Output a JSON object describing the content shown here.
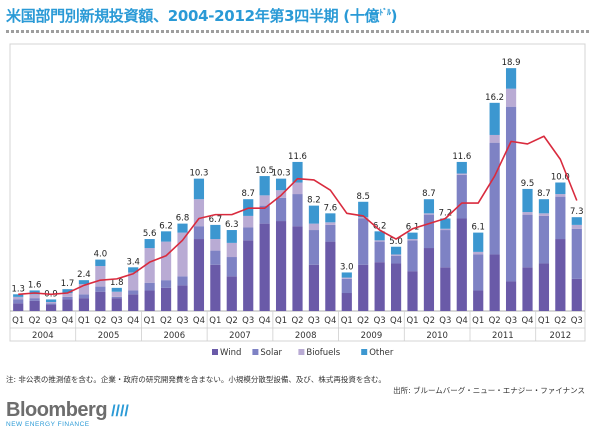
{
  "page": {
    "title": "米国部門別新規投資額、2004-2012年第3四半期 (十億",
    "title_unit_sup": "ﾄﾞﾙ",
    "title_close": ")",
    "note": "注: 非公表の推測値を含む。企業・政府の研究開発費を含まない。小規模分散型設備、及び、株式再投資を含む。",
    "source": "出所: ブルームバーグ・ニュー・エナジー・ファイナンス",
    "brand": {
      "name": "Bloomberg",
      "slashes": "////",
      "tagline": "NEW ENERGY FINANCE"
    }
  },
  "chart_data": {
    "type": "bar",
    "stacked": true,
    "categories": [
      "Q1",
      "Q2",
      "Q3",
      "Q4",
      "Q1",
      "Q2",
      "Q3",
      "Q4",
      "Q1",
      "Q2",
      "Q3",
      "Q4",
      "Q1",
      "Q2",
      "Q3",
      "Q4",
      "Q1",
      "Q2",
      "Q3",
      "Q4",
      "Q1",
      "Q2",
      "Q3",
      "Q4",
      "Q1",
      "Q2",
      "Q3",
      "Q4",
      "Q1",
      "Q2",
      "Q3",
      "Q4",
      "Q1",
      "Q2",
      "Q3"
    ],
    "year_groups": [
      {
        "label": "2004",
        "count": 4
      },
      {
        "label": "2005",
        "count": 4
      },
      {
        "label": "2006",
        "count": 4
      },
      {
        "label": "2007",
        "count": 4
      },
      {
        "label": "2008",
        "count": 4
      },
      {
        "label": "2009",
        "count": 4
      },
      {
        "label": "2010",
        "count": 4
      },
      {
        "label": "2011",
        "count": 4
      },
      {
        "label": "2012",
        "count": 3
      }
    ],
    "totals": [
      1.3,
      1.6,
      0.9,
      1.7,
      2.4,
      4.0,
      1.8,
      3.4,
      5.6,
      6.2,
      6.8,
      10.3,
      6.7,
      6.3,
      8.7,
      10.5,
      10.3,
      11.6,
      8.2,
      7.6,
      3.0,
      8.5,
      6.2,
      5.0,
      6.1,
      8.7,
      7.2,
      11.6,
      6.1,
      16.2,
      18.9,
      9.5,
      8.7,
      10.0,
      7.3
    ],
    "series": [
      {
        "name": "Wind",
        "color": "#6a5aa8",
        "values": [
          0.6,
          0.8,
          0.5,
          0.9,
          1.0,
          1.5,
          1.0,
          1.3,
          1.6,
          1.8,
          2.0,
          5.6,
          3.6,
          2.7,
          5.5,
          6.8,
          7.0,
          6.6,
          3.6,
          5.4,
          1.4,
          3.6,
          3.8,
          3.7,
          3.1,
          4.9,
          3.4,
          7.2,
          1.6,
          4.4,
          2.3,
          3.4,
          3.7,
          5.6,
          2.5
        ]
      },
      {
        "name": "Solar",
        "color": "#7e82c4",
        "values": [
          0.3,
          0.2,
          0.1,
          0.2,
          0.3,
          0.4,
          0.1,
          0.3,
          0.6,
          0.6,
          0.7,
          1.0,
          1.1,
          1.5,
          1.0,
          1.4,
          1.8,
          2.5,
          2.7,
          1.3,
          1.1,
          3.6,
          1.6,
          0.6,
          2.4,
          2.6,
          2.9,
          3.4,
          2.8,
          8.7,
          13.6,
          4.1,
          3.7,
          3.3,
          3.9
        ]
      },
      {
        "name": "Biofuels",
        "color": "#b9abd4",
        "values": [
          0.2,
          0.3,
          0.1,
          0.3,
          0.8,
          1.6,
          0.4,
          1.4,
          2.7,
          3.0,
          3.4,
          2.1,
          0.9,
          1.1,
          0.9,
          0.8,
          0.6,
          0.9,
          0.5,
          0.2,
          0.1,
          0.1,
          0.1,
          0.1,
          0.1,
          0.1,
          0.1,
          0.1,
          0.2,
          0.6,
          1.4,
          0.2,
          0.2,
          0.2,
          0.3
        ]
      },
      {
        "name": "Other",
        "color": "#3c97d0",
        "values": [
          0.2,
          0.3,
          0.2,
          0.3,
          0.3,
          0.5,
          0.3,
          0.4,
          0.7,
          0.8,
          0.7,
          1.6,
          1.1,
          1.0,
          1.3,
          1.5,
          0.9,
          1.6,
          1.4,
          0.7,
          0.4,
          1.2,
          0.7,
          0.6,
          0.5,
          1.1,
          0.8,
          0.9,
          1.5,
          2.5,
          1.6,
          1.8,
          1.1,
          0.9,
          0.6
        ]
      }
    ],
    "line": {
      "color": "#d92b3e",
      "values": [
        1.3,
        1.4,
        1.3,
        1.4,
        2.0,
        2.4,
        2.5,
        2.9,
        3.8,
        4.3,
        5.5,
        7.2,
        7.5,
        7.5,
        8.0,
        8.0,
        9.0,
        10.3,
        10.2,
        9.4,
        7.6,
        7.4,
        6.3,
        5.6,
        6.4,
        6.8,
        7.2,
        8.4,
        8.4,
        10.5,
        13.2,
        13.0,
        13.6,
        11.8,
        8.6
      ]
    },
    "ylim": [
      0,
      20
    ],
    "xlabel": "",
    "ylabel": "",
    "legend": {
      "placement": "bottom-center",
      "entries": [
        "Wind",
        "Solar",
        "Biofuels",
        "Other"
      ]
    },
    "grid": false
  }
}
